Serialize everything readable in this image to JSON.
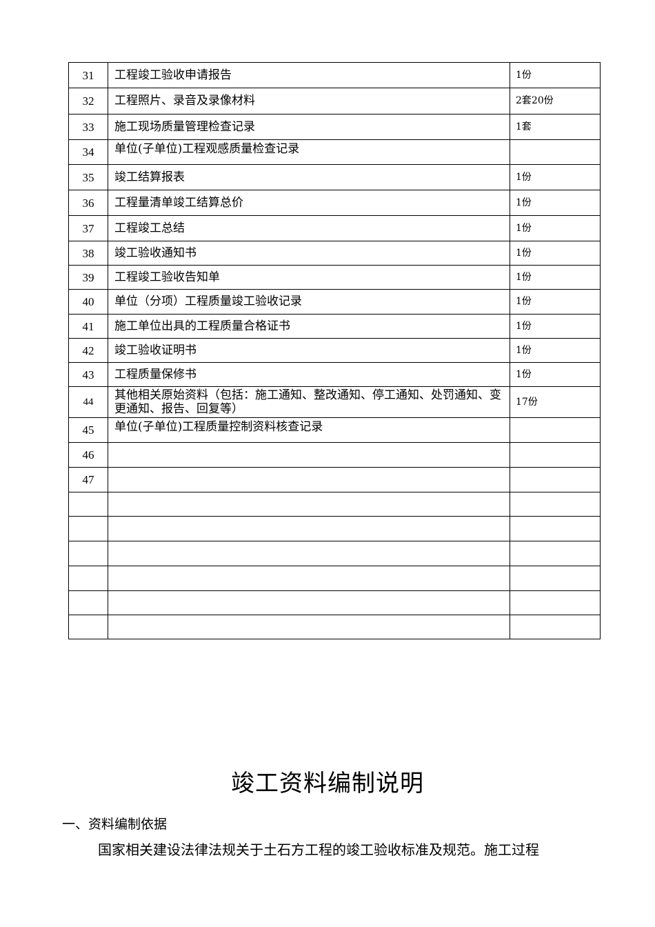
{
  "table": {
    "rows": [
      {
        "no": "31",
        "item": "工程竣工验收申请报告",
        "qty": "1份"
      },
      {
        "no": "32",
        "item": "工程照片、录音及录像材料",
        "qty": "2套20份"
      },
      {
        "no": "33",
        "item": "施工现场质量管理检查记录",
        "qty": "1套"
      },
      {
        "no": "34",
        "item": "单位(子单位)工程观感质量检查记录",
        "qty": ""
      },
      {
        "no": "35",
        "item": "竣工结算报表",
        "qty": "1份"
      },
      {
        "no": "36",
        "item": "工程量清单竣工结算总价",
        "qty": "1份"
      },
      {
        "no": "37",
        "item": "工程竣工总结",
        "qty": "1份"
      },
      {
        "no": "38",
        "item": "竣工验收通知书",
        "qty": "1份"
      },
      {
        "no": "39",
        "item": "工程竣工验收告知单",
        "qty": "1份"
      },
      {
        "no": "40",
        "item": "单位（分项）工程质量竣工验收记录",
        "qty": "1份"
      },
      {
        "no": "41",
        "item": "施工单位出具的工程质量合格证书",
        "qty": "1份"
      },
      {
        "no": "42",
        "item": "竣工验收证明书",
        "qty": "1份"
      },
      {
        "no": "43",
        "item": "工程质量保修书",
        "qty": "1份"
      },
      {
        "no": "44",
        "item": "其他相关原始资料（包括：施工通知、整改通知、停工通知、处罚通知、变更通知、报告、回复等）",
        "qty": "17份"
      },
      {
        "no": "45",
        "item": "单位(子单位)工程质量控制资料核查记录",
        "qty": ""
      },
      {
        "no": "46",
        "item": "",
        "qty": ""
      },
      {
        "no": "47",
        "item": "",
        "qty": ""
      },
      {
        "no": "",
        "item": "",
        "qty": ""
      },
      {
        "no": "",
        "item": "",
        "qty": ""
      },
      {
        "no": "",
        "item": "",
        "qty": ""
      },
      {
        "no": "",
        "item": "",
        "qty": ""
      },
      {
        "no": "",
        "item": "",
        "qty": ""
      },
      {
        "no": "",
        "item": "",
        "qty": ""
      }
    ]
  },
  "section": {
    "title": "竣工资料编制说明",
    "heading": "一、资料编制依据",
    "paragraph": "国家相关建设法律法规关于土石方工程的竣工验收标准及规范。施工过程"
  }
}
